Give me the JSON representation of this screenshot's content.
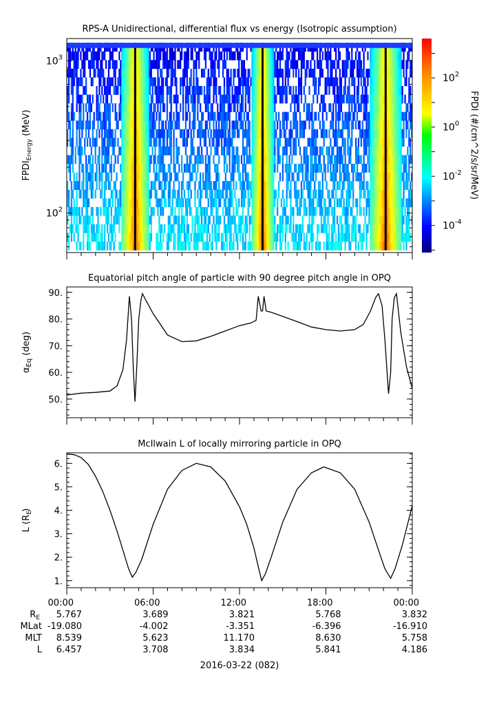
{
  "chart_data": [
    {
      "type": "heatmap",
      "title": "RPS-A Unidirectional, differential flux vs energy (Isotropic assumption)",
      "ylabel": "FPDI",
      "ylabel_sub": "Energy",
      "ylabel_unit": "(MeV)",
      "yscale": "log",
      "ylim": [
        55,
        1400
      ],
      "yticks": [
        {
          "base": "10",
          "exp": "2",
          "value": 100
        },
        {
          "base": "10",
          "exp": "3",
          "value": 1000
        }
      ],
      "xlim_hours": [
        0,
        24
      ],
      "energy_bins": 24,
      "high_flux_intervals_hours": [
        [
          3.7,
          5.8
        ],
        [
          12.8,
          14.4
        ],
        [
          21.0,
          23.3
        ]
      ],
      "colorbar": {
        "label": "FPDI (#/cm^2/s/sr/MeV)",
        "scale": "log",
        "range_log10": [
          -5.1,
          3.6
        ],
        "ticks": [
          {
            "base": "10",
            "exp": "2",
            "value": 2
          },
          {
            "base": "10",
            "exp": "0",
            "value": 0
          },
          {
            "base": "10",
            "exp": "-2",
            "value": -2
          },
          {
            "base": "10",
            "exp": "-4",
            "value": -4
          }
        ]
      }
    },
    {
      "type": "line",
      "title": "Equatorial pitch angle of particle with 90 degree pitch angle in OPQ",
      "ylabel": "α",
      "ylabel_sub": "Eq",
      "ylabel_unit": "(deg)",
      "ylim": [
        43,
        92
      ],
      "yticks": [
        "50.",
        "60.",
        "70.",
        "80.",
        "90."
      ],
      "x_hours": [
        0,
        1,
        2,
        3,
        3.5,
        3.9,
        4.15,
        4.35,
        4.5,
        4.62,
        4.74,
        4.86,
        5.0,
        5.15,
        5.26,
        5.5,
        6,
        7,
        8,
        9,
        10,
        11,
        12,
        12.8,
        13.15,
        13.3,
        13.5,
        13.6,
        13.7,
        13.85,
        14.2,
        15,
        16,
        17,
        18,
        19,
        20,
        20.6,
        21.1,
        21.45,
        21.65,
        21.9,
        22.1,
        22.35,
        22.5,
        22.6,
        22.75,
        22.9,
        23.2,
        23.6,
        24
      ],
      "values": [
        51.5,
        52.2,
        52.5,
        53,
        55,
        61,
        72,
        88.5,
        80,
        62,
        49,
        62,
        80,
        87,
        89.5,
        87,
        82,
        74,
        71.5,
        71.8,
        73.5,
        75.5,
        77.5,
        78.5,
        79.5,
        88.5,
        83,
        83,
        88.5,
        83,
        82.5,
        81,
        79,
        77,
        76,
        75.5,
        76,
        78,
        83,
        88,
        89.5,
        85,
        72,
        52,
        60,
        80,
        88,
        89.5,
        75,
        62,
        54
      ]
    },
    {
      "type": "line",
      "title": "McIlwain L of locally mirroring particle in OPQ",
      "ylabel": "L",
      "ylabel_sub": "E",
      "ylabel_unit": "(R )",
      "ylim": [
        0.7,
        6.45
      ],
      "yticks": [
        "1.",
        "2.",
        "3.",
        "4.",
        "5.",
        "6."
      ],
      "x_hours": [
        0,
        0.5,
        1,
        1.5,
        2,
        2.5,
        3,
        3.5,
        4,
        4.3,
        4.55,
        4.8,
        5.2,
        6,
        7,
        8,
        9,
        10,
        11,
        12,
        12.5,
        13,
        13.3,
        13.54,
        13.8,
        14.2,
        15,
        16,
        17,
        17.85,
        19,
        20,
        21,
        21.6,
        22.1,
        22.5,
        22.8,
        23.3,
        24
      ],
      "values": [
        6.4,
        6.37,
        6.25,
        5.95,
        5.45,
        4.8,
        4.0,
        3.1,
        2.1,
        1.5,
        1.15,
        1.35,
        1.9,
        3.4,
        4.9,
        5.7,
        6.0,
        5.85,
        5.25,
        4.15,
        3.4,
        2.4,
        1.6,
        1.0,
        1.3,
        2.0,
        3.5,
        4.9,
        5.6,
        5.85,
        5.6,
        4.9,
        3.5,
        2.4,
        1.5,
        1.1,
        1.5,
        2.5,
        4.2
      ]
    }
  ],
  "x_axis": {
    "tick_labels": [
      "00:00",
      "06:00",
      "12:00",
      "18:00",
      "00:00"
    ],
    "row_labels": [
      "R",
      "MLat",
      "MLT",
      "L"
    ],
    "row_label_sub": "E",
    "rows": {
      "RE": [
        "5.767",
        "3.689",
        "3.821",
        "5.768",
        "3.832"
      ],
      "MLat": [
        "-19.080",
        "-4.002",
        "-3.351",
        "-6.396",
        "-16.910"
      ],
      "MLT": [
        "8.539",
        "5.623",
        "11.170",
        "8.630",
        "5.758"
      ],
      "L": [
        "6.457",
        "3.708",
        "3.834",
        "5.841",
        "4.186"
      ]
    },
    "date_label": "2016-03-22 (082)"
  }
}
